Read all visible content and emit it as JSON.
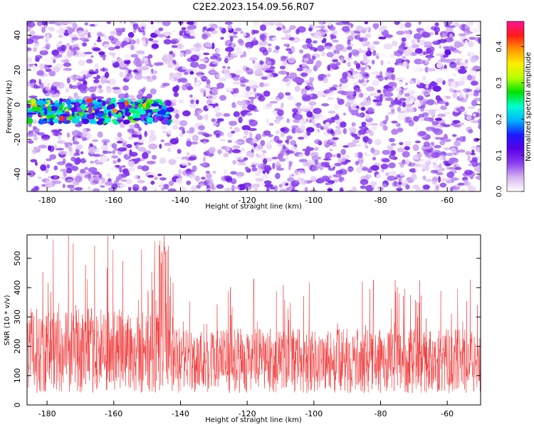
{
  "figure_title": "C2E2.2023.154.09.56.R07",
  "chart_data": [
    {
      "type": "heatmap",
      "title": "C2E2.2023.154.09.56.R07",
      "xlabel": "Height of straight line (km)",
      "ylabel": "Frequency (Hz)",
      "xlim": [
        -186,
        -50
      ],
      "ylim": [
        -50,
        48
      ],
      "x_ticks": [
        -180,
        -160,
        -140,
        -120,
        -100,
        -80,
        -60
      ],
      "y_ticks": [
        -40,
        -20,
        0,
        20,
        40
      ],
      "colorbar": {
        "label": "Normalized spectral amplitude",
        "range": [
          0.0,
          0.47
        ],
        "ticks": [
          0.0,
          0.1,
          0.2,
          0.3,
          0.4
        ],
        "colormap": [
          "#ffffff",
          "#d6b3f0",
          "#8a3ef0",
          "#5a00e6",
          "#1a1aff",
          "#00b4ff",
          "#00ffd0",
          "#00e000",
          "#b4ff00",
          "#ffee00",
          "#ff9900",
          "#ff1a1a",
          "#ff1493"
        ]
      },
      "features": [
        {
          "description_of_region": "strong band",
          "x_range": [
            -186,
            -143
          ],
          "y_center": -4,
          "value_range": [
            0.15,
            0.45
          ]
        },
        {
          "description_of_region": "background",
          "x_range": [
            -186,
            -50
          ],
          "y_range": [
            -50,
            48
          ],
          "value_range": [
            0.0,
            0.12
          ]
        }
      ],
      "grid": false
    },
    {
      "type": "line",
      "xlabel": "Height of straight line (km)",
      "ylabel": "SNR (10 * v/v)",
      "xlim": [
        -186,
        -50
      ],
      "ylim": [
        0,
        580
      ],
      "x_ticks": [
        -180,
        -160,
        -140,
        -120,
        -100,
        -80,
        -60
      ],
      "y_ticks": [
        0,
        100,
        200,
        300,
        400,
        500
      ],
      "line_color": "#ef3333",
      "segments": [
        {
          "x_range": [
            -186,
            -143
          ],
          "typical_low": 40,
          "typical_high": 330,
          "peak": 578,
          "peak_x": -145
        },
        {
          "x_range": [
            -143,
            -50
          ],
          "typical_low": 40,
          "typical_high": 260,
          "peak": 430,
          "peak_x": -118
        }
      ],
      "grid": false
    }
  ]
}
